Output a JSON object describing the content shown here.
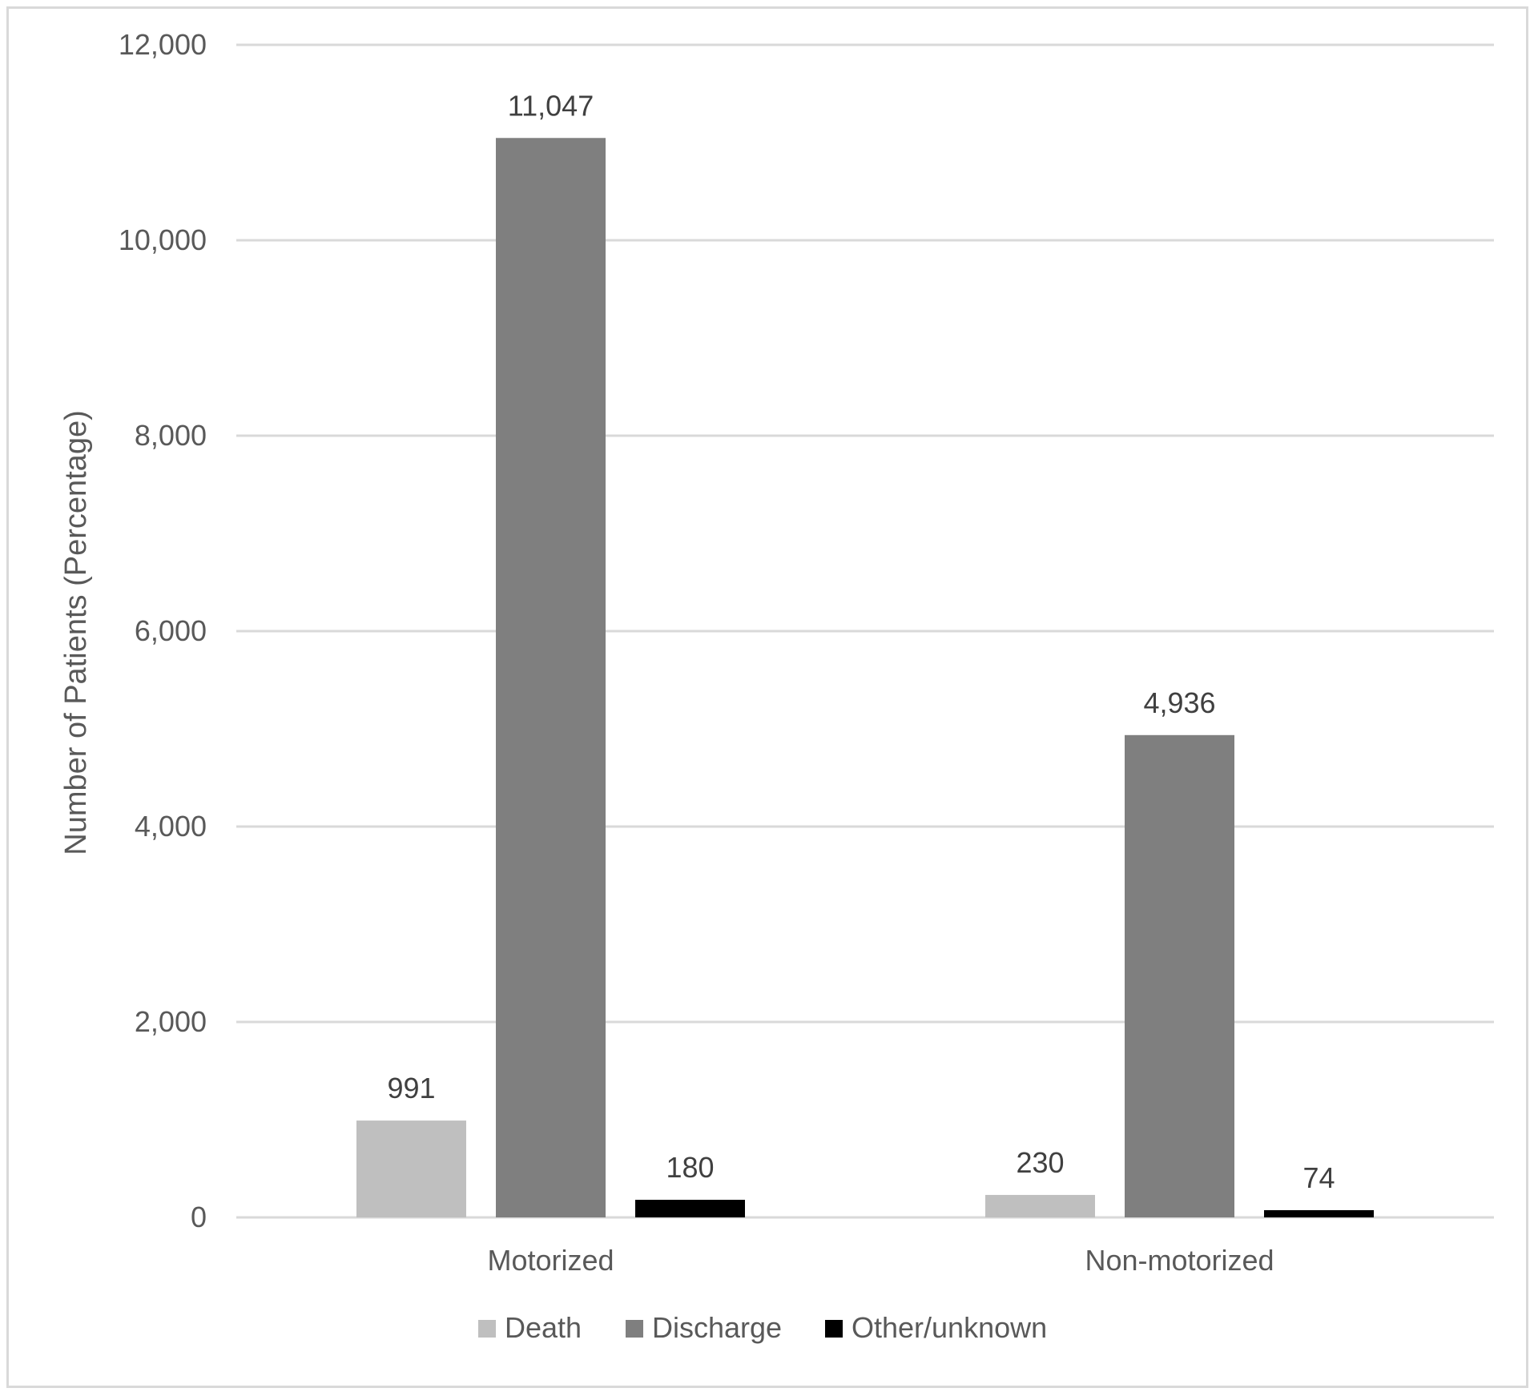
{
  "chart_data": {
    "type": "bar",
    "title": "",
    "xlabel": "",
    "ylabel": "Number of Patients (Percentage)",
    "ylim": [
      0,
      12000
    ],
    "yticks": [
      0,
      2000,
      4000,
      6000,
      8000,
      10000,
      12000
    ],
    "ytick_labels": [
      "0",
      "2,000",
      "4,000",
      "6,000",
      "8,000",
      "10,000",
      "12,000"
    ],
    "grid": true,
    "legend_position": "bottom",
    "categories": [
      "Motorized",
      "Non-motorized"
    ],
    "series": [
      {
        "name": "Death",
        "color": "#bfbfbf",
        "values": [
          991,
          230
        ],
        "labels": [
          "991",
          "230"
        ]
      },
      {
        "name": "Discharge",
        "color": "#7f7f7f",
        "values": [
          11047,
          4936
        ],
        "labels": [
          "11,047",
          "4,936"
        ]
      },
      {
        "name": "Other/unknown",
        "color": "#000000",
        "values": [
          180,
          74
        ],
        "labels": [
          "180",
          "74"
        ]
      }
    ]
  }
}
